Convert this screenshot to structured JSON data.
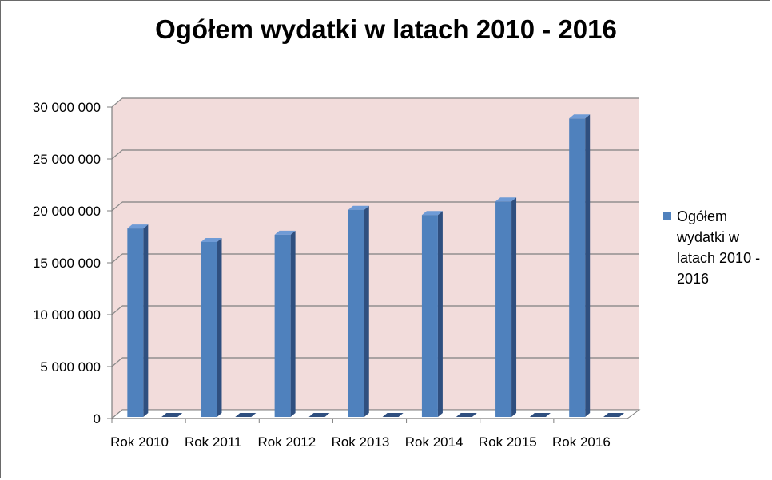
{
  "chart_data": {
    "type": "bar",
    "title": "Ogółem wydatki w latach 2010 - 2016",
    "categories": [
      "Rok 2010",
      "Rok 2011",
      "Rok 2012",
      "Rok 2013",
      "Rok 2014",
      "Rok 2015",
      "Rok 2016"
    ],
    "series": [
      {
        "name": "Ogółem wydatki w latach 2010 - 2016",
        "values": [
          18300000,
          17000000,
          17700000,
          20100000,
          19600000,
          20900000,
          28900000
        ]
      }
    ],
    "ylim": [
      0,
      30000000
    ],
    "yticks": [
      "0",
      "5 000 000",
      "10 000 000",
      "15 000 000",
      "20 000 000",
      "25 000 000",
      "30 000 000"
    ],
    "grid": true,
    "legend_position": "right",
    "colors": {
      "bar": "#4f81bd",
      "bar_side": "#2f4f7f",
      "bar_top": "#6f9bd6",
      "plot_background": "#f2dcdb"
    }
  }
}
